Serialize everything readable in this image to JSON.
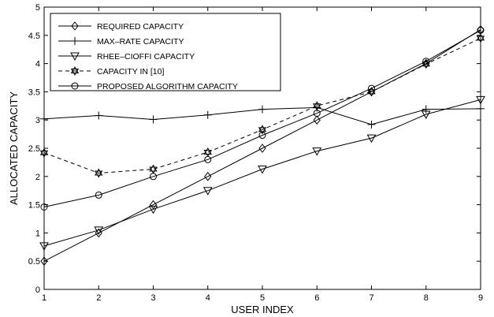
{
  "chart_data": {
    "type": "line",
    "title": "",
    "xlabel": "USER INDEX",
    "ylabel": "ALLOCATED CAPACITY",
    "xlim": [
      1,
      9
    ],
    "ylim": [
      0,
      5
    ],
    "x_ticks": [
      "1",
      "2",
      "3",
      "4",
      "5",
      "6",
      "7",
      "8",
      "9"
    ],
    "y_ticks": [
      "0",
      "0.5",
      "1",
      "1.5",
      "2",
      "2.5",
      "3",
      "3.5",
      "4",
      "4.5",
      "5"
    ],
    "grid": false,
    "legend_position": "top-left",
    "x": [
      1,
      2,
      3,
      4,
      5,
      6,
      7,
      8,
      9
    ],
    "series": [
      {
        "name": "REQUIRED CAPACITY",
        "marker": "diamond",
        "dash": "solid",
        "values": [
          0.5,
          1.0,
          1.5,
          2.0,
          2.5,
          3.0,
          3.5,
          4.0,
          4.6
        ]
      },
      {
        "name": "MAX–RATE CAPACITY",
        "marker": "plus",
        "dash": "solid",
        "values": [
          3.02,
          3.08,
          3.01,
          3.09,
          3.19,
          3.22,
          2.92,
          3.19,
          3.2
        ]
      },
      {
        "name": "RHEE–CIOFFI CAPACITY",
        "marker": "triangle-down",
        "dash": "solid",
        "values": [
          0.77,
          1.05,
          1.42,
          1.75,
          2.13,
          2.45,
          2.68,
          3.1,
          3.36
        ]
      },
      {
        "name": "CAPACITY IN [10]",
        "marker": "hexagram",
        "dash": "dashed",
        "values": [
          2.42,
          2.06,
          2.13,
          2.43,
          2.83,
          3.25,
          3.5,
          3.99,
          4.45
        ]
      },
      {
        "name": "PROPOSED ALGORITHM CAPACITY",
        "marker": "circle",
        "dash": "solid",
        "values": [
          1.46,
          1.67,
          2.0,
          2.3,
          2.73,
          3.12,
          3.56,
          4.04,
          4.59
        ]
      }
    ]
  }
}
